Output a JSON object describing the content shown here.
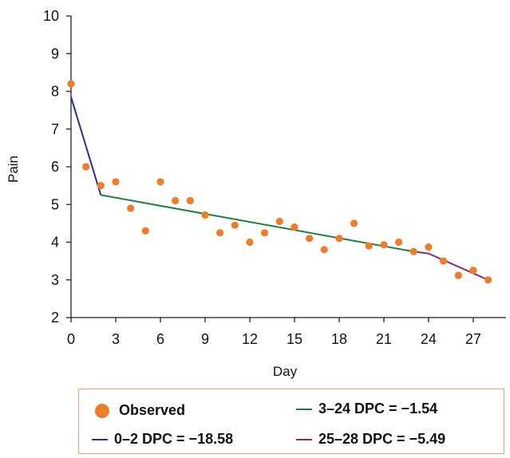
{
  "chart_data": {
    "type": "line",
    "xlabel": "Day",
    "ylabel": "Pain",
    "xlim": [
      0,
      29.2
    ],
    "ylim": [
      2,
      10
    ],
    "xticks": [
      0,
      3,
      6,
      9,
      12,
      15,
      18,
      21,
      24,
      27
    ],
    "yticks": [
      2,
      3,
      4,
      5,
      6,
      7,
      8,
      9,
      10
    ],
    "grid": false,
    "legend_position": "bottom",
    "observed": {
      "name": "Observed",
      "color": "#ee7d2b",
      "x": [
        0,
        1,
        2,
        3,
        4,
        5,
        6,
        7,
        8,
        9,
        10,
        11,
        12,
        13,
        14,
        15,
        16,
        17,
        18,
        19,
        20,
        21,
        22,
        23,
        24,
        25,
        26,
        27,
        28
      ],
      "y": [
        8.2,
        6.0,
        5.5,
        5.6,
        4.9,
        4.3,
        5.6,
        5.1,
        5.1,
        4.72,
        4.25,
        4.45,
        4.0,
        4.25,
        4.55,
        4.4,
        4.1,
        3.8,
        4.1,
        4.5,
        3.9,
        3.93,
        4.0,
        3.75,
        3.87,
        3.5,
        3.12,
        3.25,
        3.0
      ]
    },
    "segments": [
      {
        "name": "0–2 DPC = −18.58",
        "color": "#2b2f8c",
        "x": [
          0,
          2
        ],
        "y": [
          7.85,
          5.25
        ]
      },
      {
        "name": "3–24 DPC = −1.54",
        "color": "#1e7f3c",
        "x": [
          2,
          23
        ],
        "y": [
          5.25,
          3.75
        ]
      },
      {
        "name": "25–28 DPC = −5.49",
        "color": "#8e2a6e",
        "x": [
          23,
          24,
          28
        ],
        "y": [
          3.75,
          3.7,
          3.0
        ]
      }
    ],
    "legend": {
      "observed": "Observed",
      "seg1": "0–2 DPC = −18.58",
      "seg2": "3–24 DPC = −1.54",
      "seg3": "25–28 DPC = −5.49"
    },
    "colors": {
      "observed": "#ee7d2b",
      "seg1": "#2b2f8c",
      "seg2": "#1e7f3c",
      "seg3": "#8e2a6e",
      "legend_border": "#f2a36b"
    }
  }
}
